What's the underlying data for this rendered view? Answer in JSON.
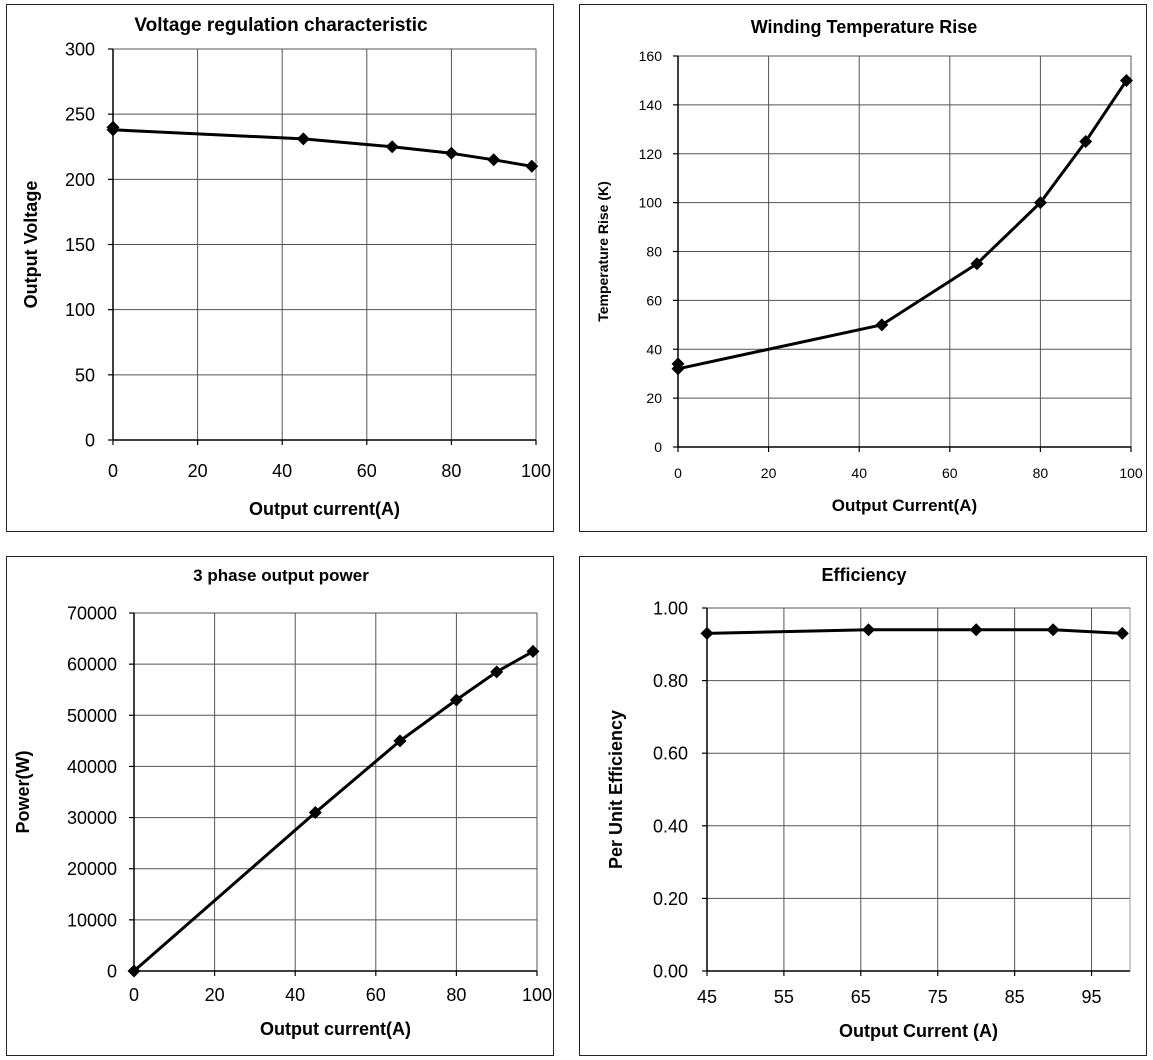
{
  "chart_data": [
    {
      "type": "line",
      "title": "Voltage regulation characteristic",
      "xlabel": "Output current(A)",
      "ylabel": "Output Voltage",
      "xlim": [
        0,
        100
      ],
      "ylim": [
        0,
        300
      ],
      "xticks": [
        0,
        20,
        40,
        60,
        80,
        100
      ],
      "yticks": [
        0,
        50,
        100,
        150,
        200,
        250,
        300
      ],
      "xtick_labels": [
        "0",
        "20",
        "40",
        "60",
        "80",
        "100"
      ],
      "ytick_labels": [
        "0",
        "50",
        "100",
        "150",
        "200",
        "250",
        "300"
      ],
      "grid": true,
      "series": [
        {
          "x": [
            0,
            0,
            45,
            66,
            80,
            90,
            99
          ],
          "y": [
            240,
            238,
            231,
            225,
            220,
            215,
            210
          ]
        }
      ]
    },
    {
      "type": "line",
      "title": "Winding Temperature Rise",
      "xlabel": "Output Current(A)",
      "ylabel": "Temperature Rise (K)",
      "xlim": [
        0,
        100
      ],
      "ylim": [
        0,
        160
      ],
      "xticks": [
        0,
        20,
        40,
        60,
        80,
        100
      ],
      "yticks": [
        0,
        20,
        40,
        60,
        80,
        100,
        120,
        140,
        160
      ],
      "xtick_labels": [
        "0",
        "20",
        "40",
        "60",
        "80",
        "100"
      ],
      "ytick_labels": [
        "0",
        "20",
        "40",
        "60",
        "80",
        "100",
        "120",
        "140",
        "160"
      ],
      "grid": true,
      "series": [
        {
          "x": [
            0,
            0,
            45,
            66,
            80,
            90,
            99
          ],
          "y": [
            34,
            32,
            50,
            75,
            100,
            125,
            150
          ]
        }
      ]
    },
    {
      "type": "line",
      "title": "3 phase output power",
      "xlabel": "Output current(A)",
      "ylabel": "Power(W)",
      "xlim": [
        0,
        100
      ],
      "ylim": [
        0,
        70000
      ],
      "xticks": [
        0,
        20,
        40,
        60,
        80,
        100
      ],
      "yticks": [
        0,
        10000,
        20000,
        30000,
        40000,
        50000,
        60000,
        70000
      ],
      "xtick_labels": [
        "0",
        "20",
        "40",
        "60",
        "80",
        "100"
      ],
      "ytick_labels": [
        "0",
        "10000",
        "20000",
        "30000",
        "40000",
        "50000",
        "60000",
        "70000"
      ],
      "grid": true,
      "series": [
        {
          "x": [
            0,
            45,
            66,
            80,
            90,
            99
          ],
          "y": [
            0,
            31000,
            45000,
            53000,
            58500,
            62500
          ]
        }
      ]
    },
    {
      "type": "line",
      "title": "Efficiency",
      "xlabel": "Output Current (A)",
      "ylabel": "Per Unit Efficiency",
      "xlim": [
        45,
        100
      ],
      "ylim": [
        0,
        1.0
      ],
      "xticks": [
        45,
        55,
        65,
        75,
        85,
        95
      ],
      "yticks": [
        0,
        0.2,
        0.4,
        0.6,
        0.8,
        1.0
      ],
      "xtick_labels": [
        "45",
        "55",
        "65",
        "75",
        "85",
        "95"
      ],
      "ytick_labels": [
        "0.00",
        "0.20",
        "0.40",
        "0.60",
        "0.80",
        "1.00"
      ],
      "grid": true,
      "series": [
        {
          "x": [
            45,
            66,
            80,
            90,
            99
          ],
          "y": [
            0.93,
            0.94,
            0.94,
            0.94,
            0.93
          ]
        }
      ]
    }
  ]
}
